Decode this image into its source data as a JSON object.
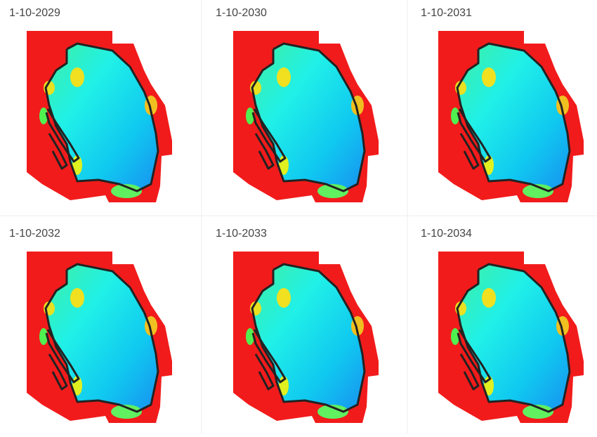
{
  "panels": [
    {
      "label": "1-10-2029"
    },
    {
      "label": "1-10-2030"
    },
    {
      "label": "1-10-2031"
    },
    {
      "label": "1-10-2032"
    },
    {
      "label": "1-10-2033"
    },
    {
      "label": "1-10-2034"
    }
  ]
}
